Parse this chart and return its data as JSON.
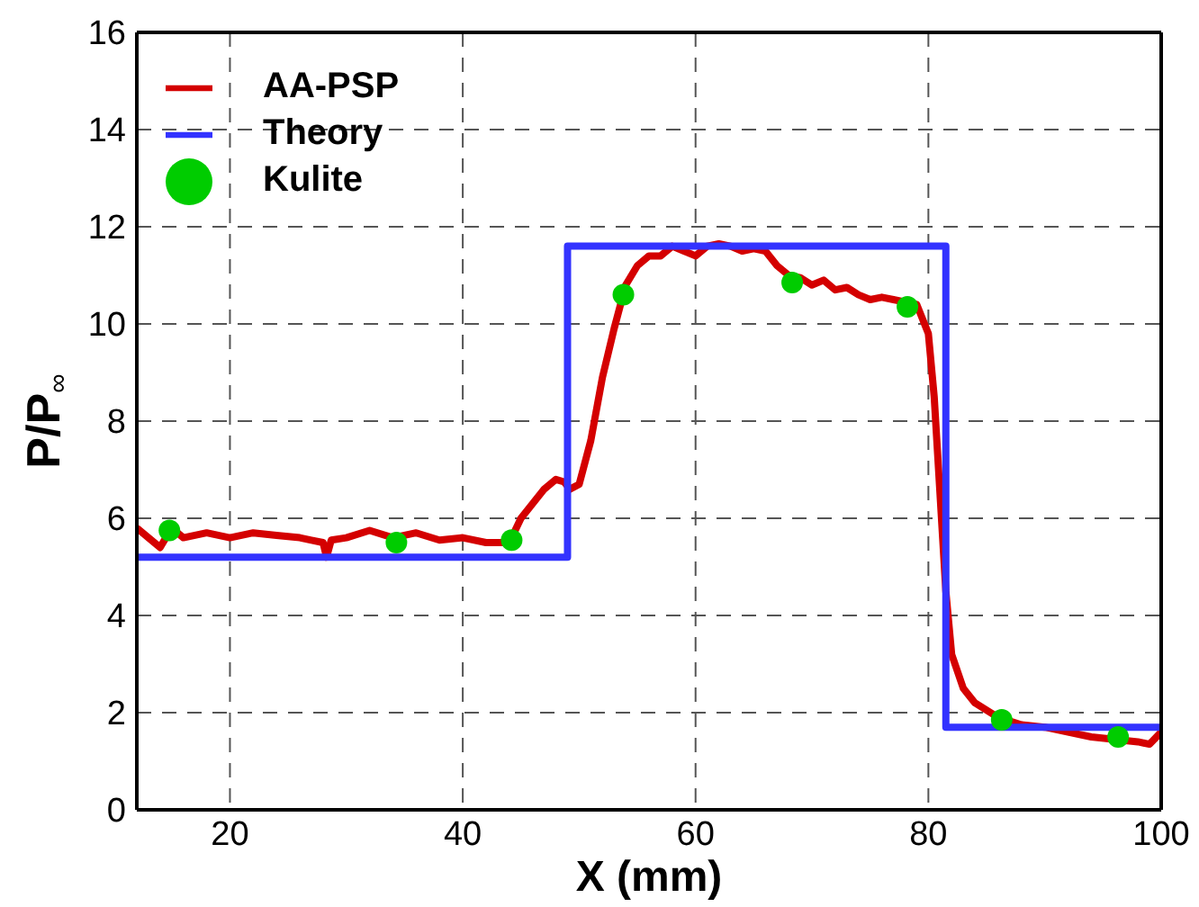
{
  "chart_data": {
    "type": "line",
    "xlabel": "X (mm)",
    "ylabel": "P/P$_{∞}$",
    "xlim": [
      12,
      100
    ],
    "ylim": [
      0,
      16
    ],
    "xticks": [
      20,
      40,
      60,
      80,
      100
    ],
    "yticks": [
      0,
      2,
      4,
      6,
      8,
      10,
      12,
      14,
      16
    ],
    "grid": true,
    "legend": "top left",
    "line_style": "solid",
    "marker": "none",
    "series": [
      {
        "name": "AA-PSP",
        "color": "#d40000",
        "x": [
          12,
          13,
          14,
          15,
          16,
          18,
          20,
          22,
          24,
          26,
          27,
          28,
          28.3,
          28.7,
          30,
          32,
          34,
          36,
          38,
          40,
          42,
          44,
          45,
          46,
          47,
          48,
          48.7,
          49.2,
          50,
          51,
          52,
          53,
          54,
          55,
          56,
          57,
          58,
          59,
          60,
          61,
          62,
          63,
          64,
          65,
          66,
          67,
          68,
          69,
          70,
          71,
          72,
          73,
          74,
          75,
          76,
          77,
          78,
          79,
          80,
          80.5,
          81,
          81.5,
          82,
          83,
          84,
          86,
          88,
          90,
          92,
          94,
          96,
          98,
          99,
          100
        ],
        "values": [
          5.8,
          5.6,
          5.4,
          5.8,
          5.6,
          5.7,
          5.6,
          5.7,
          5.65,
          5.6,
          5.55,
          5.5,
          5.2,
          5.55,
          5.6,
          5.75,
          5.6,
          5.7,
          5.55,
          5.6,
          5.5,
          5.5,
          6.0,
          6.3,
          6.6,
          6.8,
          6.75,
          6.6,
          6.7,
          7.6,
          8.9,
          9.9,
          10.8,
          11.2,
          11.4,
          11.4,
          11.6,
          11.5,
          11.4,
          11.6,
          11.65,
          11.6,
          11.5,
          11.55,
          11.5,
          11.2,
          11.0,
          10.95,
          10.8,
          10.9,
          10.7,
          10.75,
          10.6,
          10.5,
          10.55,
          10.5,
          10.45,
          10.4,
          9.8,
          8.5,
          6.5,
          4.5,
          3.2,
          2.5,
          2.2,
          1.9,
          1.75,
          1.7,
          1.6,
          1.5,
          1.45,
          1.4,
          1.35,
          1.6
        ]
      },
      {
        "name": "Theory",
        "color": "#3333ff",
        "x": [
          12,
          49,
          49,
          81.5,
          81.5,
          100
        ],
        "values": [
          5.2,
          5.2,
          11.6,
          11.6,
          1.7,
          1.7
        ]
      },
      {
        "name": "Kulite",
        "type": "scatter",
        "marker": "circle",
        "color": "#00cc00",
        "x": [
          14.8,
          34.3,
          44.2,
          53.8,
          68.3,
          78.2,
          86.3,
          96.3
        ],
        "values": [
          5.75,
          5.5,
          5.55,
          10.6,
          10.85,
          10.35,
          1.85,
          1.5
        ]
      }
    ]
  }
}
